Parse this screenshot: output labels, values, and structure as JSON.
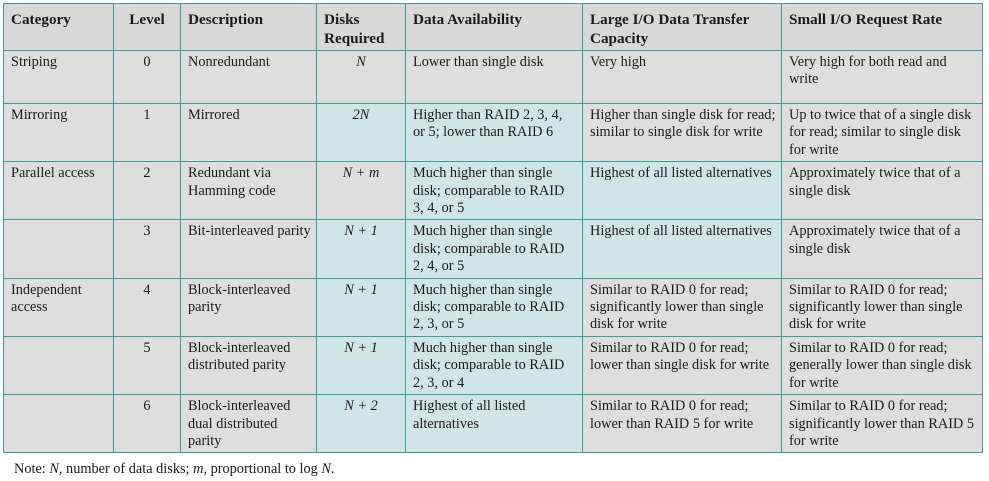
{
  "headers": {
    "category": "Category",
    "level": "Level",
    "description": "Description",
    "disks": "Disks Required",
    "availability": "Data Availability",
    "large_io": "Large I/O Data Transfer Capacity",
    "small_io": "Small I/O Request Rate"
  },
  "rows": [
    {
      "category": "Striping",
      "level": "0",
      "description": "Nonredundant",
      "disks": "N",
      "availability": "Lower than single disk",
      "large_io": "Very high",
      "small_io": "Very high for both read and write"
    },
    {
      "category": "Mirroring",
      "level": "1",
      "description": "Mirrored",
      "disks": "2N",
      "availability": "Higher than RAID 2, 3, 4, or 5; lower than RAID 6",
      "large_io": "Higher than single disk for read; similar to single disk for write",
      "small_io": "Up to twice that of a single disk for read; similar to single disk for write"
    },
    {
      "category": "Parallel access",
      "level": "2",
      "description": "Redundant via Hamming code",
      "disks": "N + m",
      "availability": "Much higher than single disk; comparable to RAID 3, 4, or 5",
      "large_io": "Highest of all listed alternatives",
      "small_io": "Approximately twice that of a single disk"
    },
    {
      "category": "",
      "level": "3",
      "description": "Bit-interleaved parity",
      "disks": "N + 1",
      "availability": "Much higher than single disk; comparable to RAID 2, 4, or 5",
      "large_io": "Highest of all listed alternatives",
      "small_io": "Approximately twice that of a single disk"
    },
    {
      "category": "Independent access",
      "level": "4",
      "description": "Block-interleaved parity",
      "disks": "N + 1",
      "availability": "Much higher than single disk; comparable to RAID 2, 3, or 5",
      "large_io": "Similar to RAID 0 for read; significantly lower than single disk for write",
      "small_io": "Similar to RAID 0 for read; significantly lower than single disk for write"
    },
    {
      "category": "",
      "level": "5",
      "description": "Block-interleaved distributed parity",
      "disks": "N + 1",
      "availability": "Much higher than single disk; comparable to RAID 2, 3, or 4",
      "large_io": "Similar to RAID 0 for read; lower than single disk for write",
      "small_io": "Similar to RAID 0 for read; generally lower than single disk for write"
    },
    {
      "category": "",
      "level": "6",
      "description": "Block-interleaved dual distributed parity",
      "disks": "N + 2",
      "availability": "Highest of all listed alternatives",
      "large_io": "Similar to RAID 0 for read; lower than RAID 5 for write",
      "small_io": "Similar to RAID 0 for read; significantly lower than RAID 5 for write"
    }
  ],
  "note": {
    "prefix": "Note: ",
    "n_symbol": "N",
    "n_text": ", number of data disks; ",
    "m_symbol": "m",
    "m_text": ", proportional to log ",
    "log_symbol": "N",
    "suffix": "."
  },
  "colors": {
    "grid": "#3d9a95",
    "gray_cell": "#dedede",
    "teal_cell": "#cfe6e4"
  }
}
